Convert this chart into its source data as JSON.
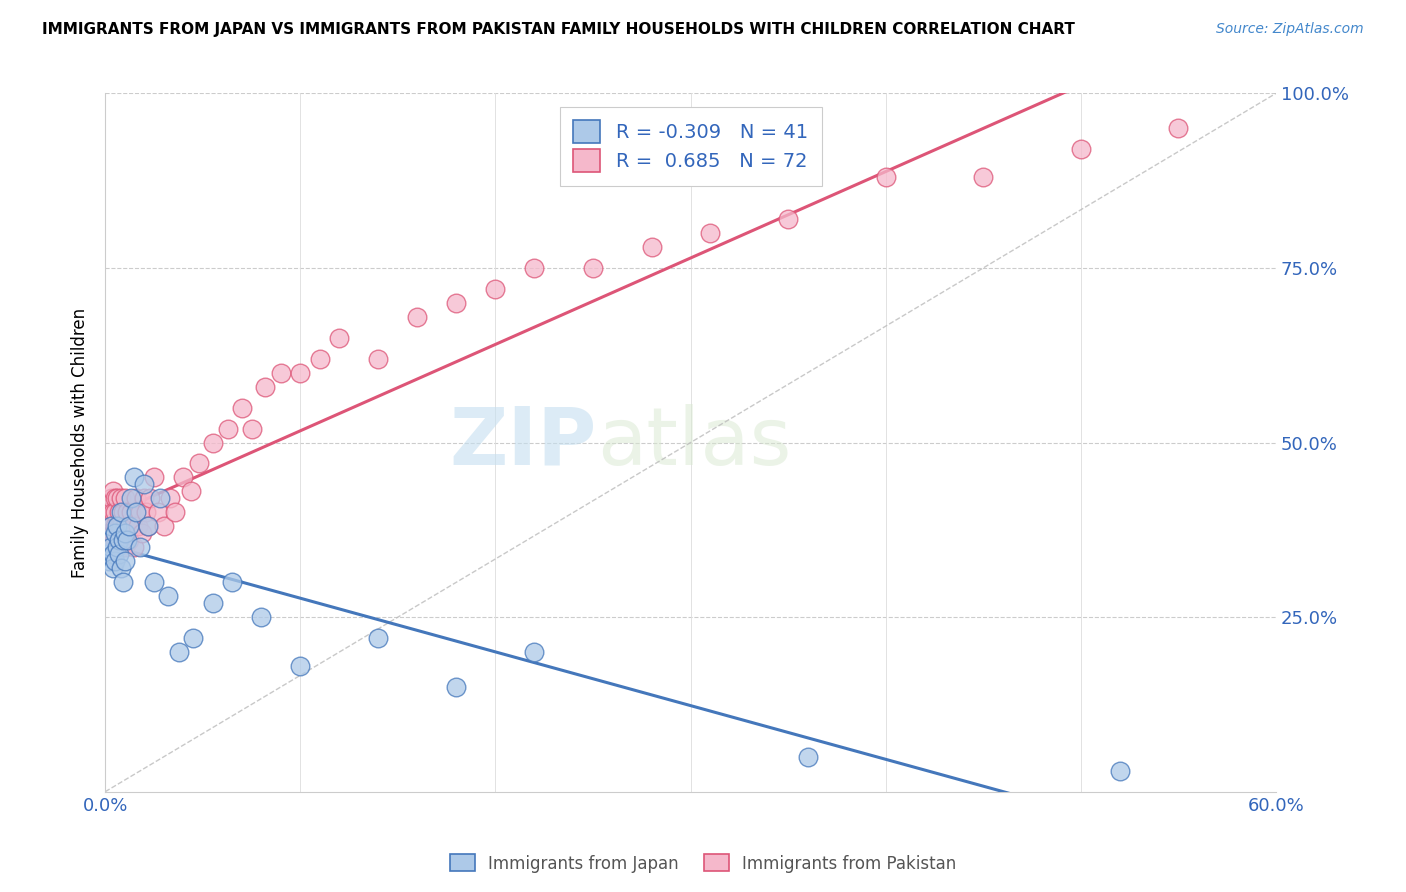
{
  "title": "IMMIGRANTS FROM JAPAN VS IMMIGRANTS FROM PAKISTAN FAMILY HOUSEHOLDS WITH CHILDREN CORRELATION CHART",
  "source": "Source: ZipAtlas.com",
  "ylabel": "Family Households with Children",
  "legend_japan": "Immigrants from Japan",
  "legend_pakistan": "Immigrants from Pakistan",
  "r_japan": -0.309,
  "n_japan": 41,
  "r_pakistan": 0.685,
  "n_pakistan": 72,
  "xlim": [
    0.0,
    0.6
  ],
  "ylim": [
    0.0,
    1.0
  ],
  "color_japan": "#adc9e8",
  "color_pakistan": "#f5b8cb",
  "line_color_japan": "#4477bb",
  "line_color_pakistan": "#dd5577",
  "watermark_zip": "ZIP",
  "watermark_atlas": "atlas",
  "japan_x": [
    0.001,
    0.002,
    0.002,
    0.003,
    0.003,
    0.004,
    0.004,
    0.005,
    0.005,
    0.006,
    0.006,
    0.007,
    0.007,
    0.008,
    0.008,
    0.009,
    0.009,
    0.01,
    0.01,
    0.011,
    0.012,
    0.013,
    0.015,
    0.016,
    0.018,
    0.02,
    0.022,
    0.025,
    0.028,
    0.032,
    0.038,
    0.045,
    0.055,
    0.065,
    0.08,
    0.1,
    0.14,
    0.18,
    0.22,
    0.36,
    0.52
  ],
  "japan_y": [
    0.34,
    0.36,
    0.33,
    0.38,
    0.35,
    0.34,
    0.32,
    0.37,
    0.33,
    0.35,
    0.38,
    0.36,
    0.34,
    0.4,
    0.32,
    0.36,
    0.3,
    0.37,
    0.33,
    0.36,
    0.38,
    0.42,
    0.45,
    0.4,
    0.35,
    0.44,
    0.38,
    0.3,
    0.42,
    0.28,
    0.2,
    0.22,
    0.27,
    0.3,
    0.25,
    0.18,
    0.22,
    0.15,
    0.2,
    0.05,
    0.03
  ],
  "pakistan_x": [
    0.001,
    0.001,
    0.002,
    0.002,
    0.003,
    0.003,
    0.003,
    0.004,
    0.004,
    0.004,
    0.005,
    0.005,
    0.005,
    0.005,
    0.006,
    0.006,
    0.006,
    0.007,
    0.007,
    0.007,
    0.008,
    0.008,
    0.008,
    0.009,
    0.009,
    0.01,
    0.01,
    0.01,
    0.011,
    0.012,
    0.012,
    0.013,
    0.014,
    0.015,
    0.016,
    0.017,
    0.018,
    0.019,
    0.02,
    0.021,
    0.022,
    0.023,
    0.025,
    0.027,
    0.03,
    0.033,
    0.036,
    0.04,
    0.044,
    0.048,
    0.055,
    0.063,
    0.07,
    0.075,
    0.082,
    0.09,
    0.1,
    0.11,
    0.12,
    0.14,
    0.16,
    0.18,
    0.2,
    0.22,
    0.25,
    0.28,
    0.31,
    0.35,
    0.4,
    0.45,
    0.5,
    0.55
  ],
  "pakistan_y": [
    0.35,
    0.38,
    0.4,
    0.37,
    0.42,
    0.38,
    0.35,
    0.4,
    0.37,
    0.43,
    0.38,
    0.42,
    0.36,
    0.4,
    0.38,
    0.35,
    0.42,
    0.4,
    0.37,
    0.38,
    0.35,
    0.42,
    0.38,
    0.4,
    0.36,
    0.38,
    0.42,
    0.35,
    0.4,
    0.38,
    0.36,
    0.4,
    0.38,
    0.35,
    0.42,
    0.38,
    0.4,
    0.37,
    0.42,
    0.4,
    0.38,
    0.42,
    0.45,
    0.4,
    0.38,
    0.42,
    0.4,
    0.45,
    0.43,
    0.47,
    0.5,
    0.52,
    0.55,
    0.52,
    0.58,
    0.6,
    0.6,
    0.62,
    0.65,
    0.62,
    0.68,
    0.7,
    0.72,
    0.75,
    0.75,
    0.78,
    0.8,
    0.82,
    0.88,
    0.88,
    0.92,
    0.95
  ]
}
